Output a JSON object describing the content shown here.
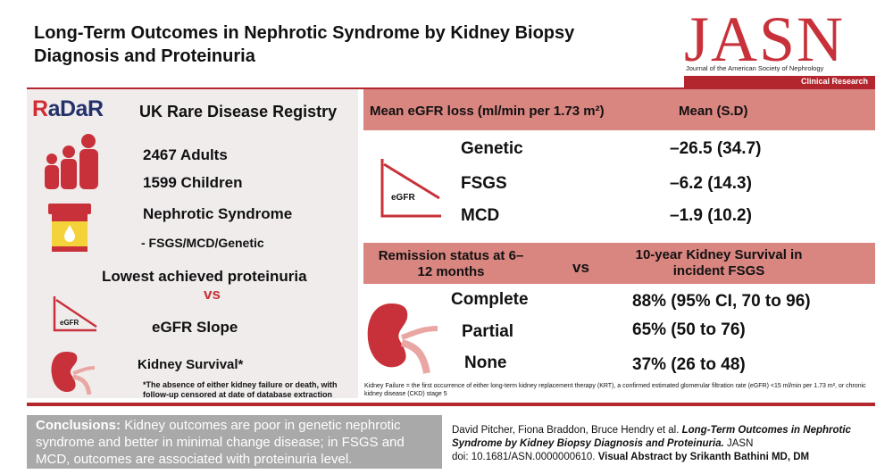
{
  "title": "Long-Term Outcomes in Nephrotic Syndrome by Kidney Biopsy Diagnosis and Proteinuria",
  "journal": {
    "logo": "JASN",
    "subtitle": "Journal of the American Society of Nephrology",
    "section": "Clinical Research"
  },
  "left": {
    "registry_logo": "RaDaR",
    "registry_name": "UK Rare Disease Registry",
    "adults": "2467 Adults",
    "children": "1599 Children",
    "condition": "Nephrotic Syndrome",
    "subtypes": "- FSGS/MCD/Genetic",
    "exposure": "Lowest achieved proteinuria",
    "vs": "vs",
    "egfr_icon_label": "eGFR",
    "outcome1": "eGFR Slope",
    "outcome2": "Kidney Survival*",
    "footnote": "*The absence of either kidney failure or death, with follow-up censored at date of database extraction"
  },
  "egfr_table": {
    "header_left": "Mean eGFR loss (ml/min per 1.73 m²)",
    "header_right": "Mean (S.D)",
    "icon_label": "eGFR",
    "rows": [
      {
        "label": "Genetic",
        "value": "–26.5 (34.7)"
      },
      {
        "label": "FSGS",
        "value": "–6.2 (14.3)"
      },
      {
        "label": "MCD",
        "value": "–1.9 (10.2)"
      }
    ]
  },
  "survival_table": {
    "header_left": "Remission status at 6–12 months",
    "header_vs": "vs",
    "header_right": "10-year Kidney Survival in incident FSGS",
    "rows": [
      {
        "label": "Complete",
        "value": "88% (95% CI, 70 to 96)"
      },
      {
        "label": "Partial",
        "value": "65% (50 to 76)"
      },
      {
        "label": "None",
        "value": "37% (26 to 48)"
      }
    ],
    "definition": "Kidney Failure = the first occurrence of either long-term kidney replacement therapy (KRT), a confirmed estimated glomerular filtration rate (eGFR) <15 ml/min per 1.73 m², or chronic kidney disease (CKD) stage 5"
  },
  "conclusions": {
    "label": "Conclusions:",
    "text": "Kidney outcomes are poor in genetic nephrotic syndrome and better in minimal change disease; in FSGS and MCD, outcomes are associated with proteinuria level."
  },
  "citation": {
    "authors": "David Pitcher, Fiona Braddon, Bruce Hendry et al. ",
    "article": "Long-Term Outcomes in Nephrotic Syndrome by Kidney Biopsy Diagnosis and Proteinuria.",
    "journal": " JASN",
    "doi": "doi: 10.1681/ASN.0000000610. ",
    "credit": "Visual Abstract by Srikanth Bathini MD, DM"
  },
  "colors": {
    "accent": "#b3262e",
    "header": "#d98580",
    "panel": "#f0ecec"
  }
}
